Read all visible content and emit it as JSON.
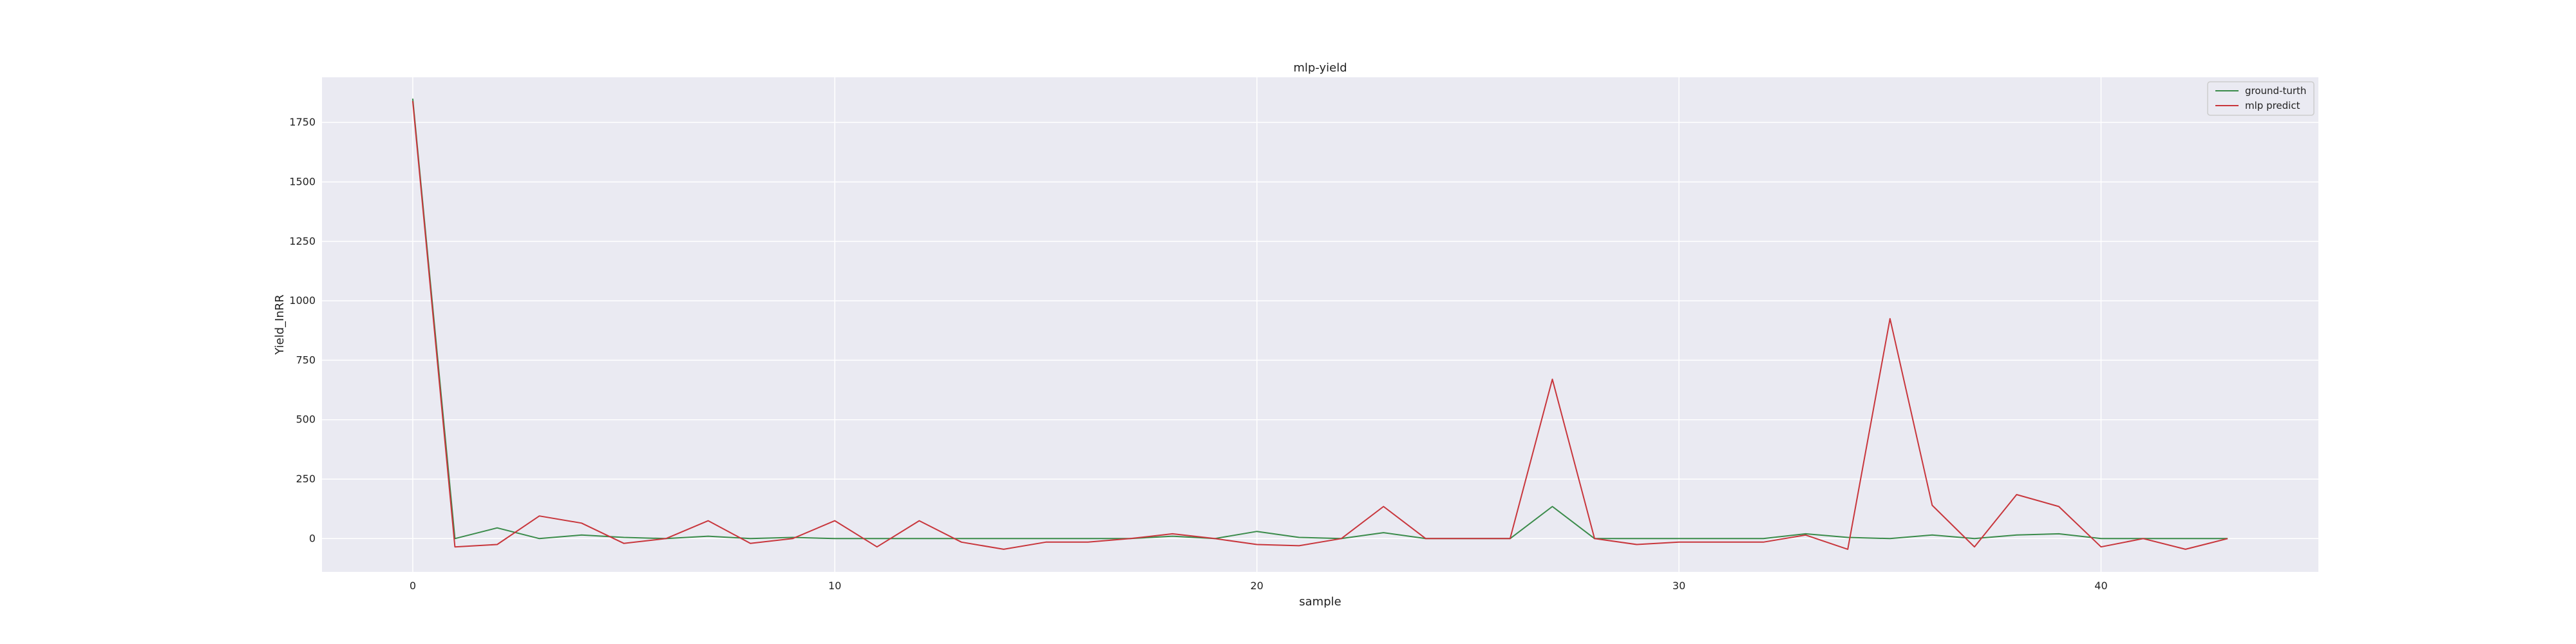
{
  "chart_data": {
    "type": "line",
    "title": "mlp-yield",
    "xlabel": "sample",
    "ylabel": "Yield_InRR",
    "xlim": [
      -2.15,
      45.15
    ],
    "ylim": [
      -140,
      1940
    ],
    "xticks": [
      0,
      10,
      20,
      30,
      40
    ],
    "yticks": [
      0,
      250,
      500,
      750,
      1000,
      1250,
      1500,
      1750
    ],
    "grid": true,
    "legend_position": "top-right",
    "x": [
      0,
      1,
      2,
      3,
      4,
      5,
      6,
      7,
      8,
      9,
      10,
      11,
      12,
      13,
      14,
      15,
      16,
      17,
      18,
      19,
      20,
      21,
      22,
      23,
      24,
      25,
      26,
      27,
      28,
      29,
      30,
      31,
      32,
      33,
      34,
      35,
      36,
      37,
      38,
      39,
      40,
      41,
      42,
      43
    ],
    "series": [
      {
        "name": "ground-turth",
        "color": "#3a8b4a",
        "values": [
          1850,
          0,
          45,
          0,
          15,
          5,
          0,
          10,
          0,
          5,
          0,
          0,
          0,
          0,
          0,
          0,
          0,
          0,
          10,
          0,
          30,
          5,
          0,
          25,
          0,
          0,
          0,
          135,
          0,
          0,
          0,
          0,
          0,
          20,
          5,
          0,
          15,
          0,
          15,
          20,
          0,
          0,
          0,
          0
        ]
      },
      {
        "name": "mlp predict",
        "color": "#c8363c",
        "values": [
          1840,
          -35,
          -25,
          95,
          65,
          -20,
          0,
          75,
          -20,
          0,
          75,
          -35,
          75,
          -15,
          -45,
          -15,
          -15,
          0,
          20,
          0,
          -25,
          -30,
          0,
          135,
          0,
          0,
          0,
          670,
          0,
          -25,
          -15,
          -15,
          -15,
          15,
          -45,
          925,
          140,
          -35,
          185,
          135,
          -35,
          0,
          -45,
          0
        ]
      }
    ]
  }
}
